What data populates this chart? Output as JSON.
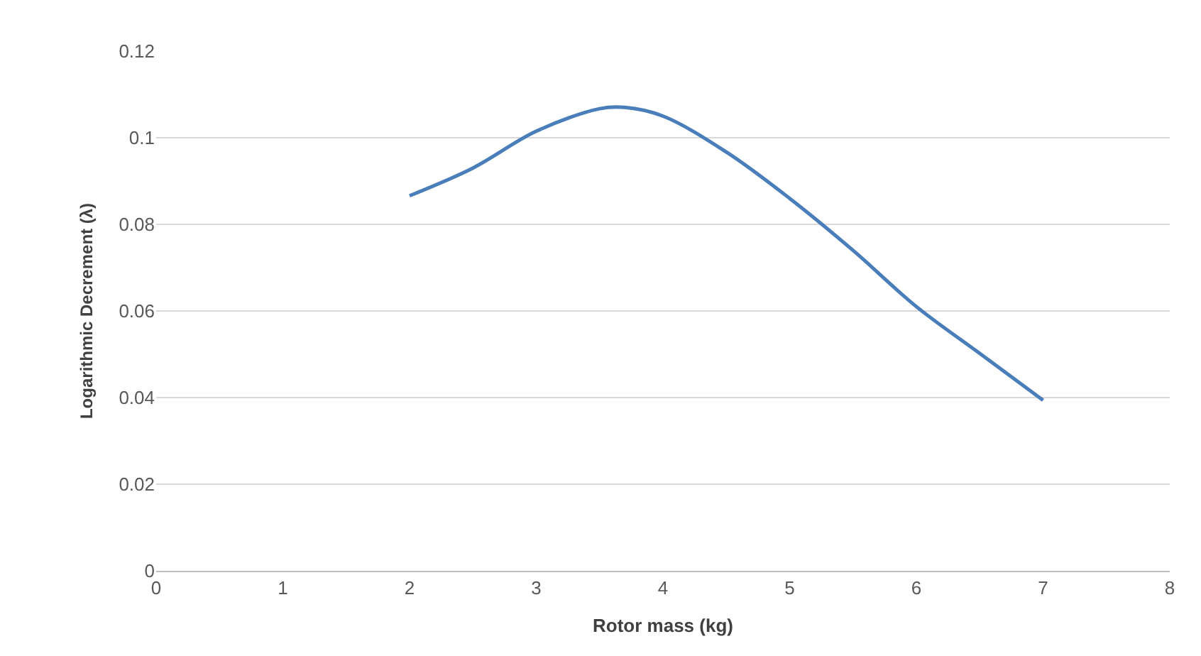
{
  "chart_data": {
    "type": "line",
    "xlabel": "Rotor mass (kg)",
    "ylabel": "Logarithmic Decrement (λ)",
    "x": [
      2,
      2.5,
      3,
      3.5,
      3.7,
      4,
      4.5,
      5,
      5.5,
      6,
      6.5,
      7
    ],
    "series": [
      {
        "color": "#4a7ebb",
        "values": [
          0.0866,
          0.093,
          0.1015,
          0.1067,
          0.107,
          0.105,
          0.0967,
          0.086,
          0.074,
          0.061,
          0.0502,
          0.0394
        ]
      }
    ],
    "xlim": [
      0,
      8
    ],
    "xticks": [
      0,
      1,
      2,
      3,
      4,
      5,
      6,
      7,
      8
    ],
    "ylim": [
      0,
      0.12
    ],
    "yticks": [
      0,
      0.02,
      0.04,
      0.06,
      0.08,
      0.1,
      0.12
    ],
    "grid": "y",
    "legend": false,
    "marker": "none",
    "line_style": "solid"
  }
}
